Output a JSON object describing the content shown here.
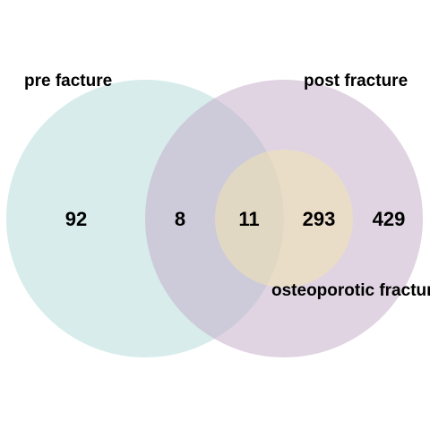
{
  "sets": [
    {
      "label": "pre facture",
      "color": "#a8d5d5"
    },
    {
      "label": "post fracture",
      "color": "#c2a9c6"
    },
    {
      "label": "osteoporotic fractures",
      "color": "#f2e3b3"
    }
  ],
  "regions": [
    {
      "id": "pre-only",
      "count": "92"
    },
    {
      "id": "pre-post",
      "count": "8"
    },
    {
      "id": "pre-post-osteo",
      "count": "11"
    },
    {
      "id": "post-osteo",
      "count": "293"
    },
    {
      "id": "post-only",
      "count": "429"
    }
  ]
}
